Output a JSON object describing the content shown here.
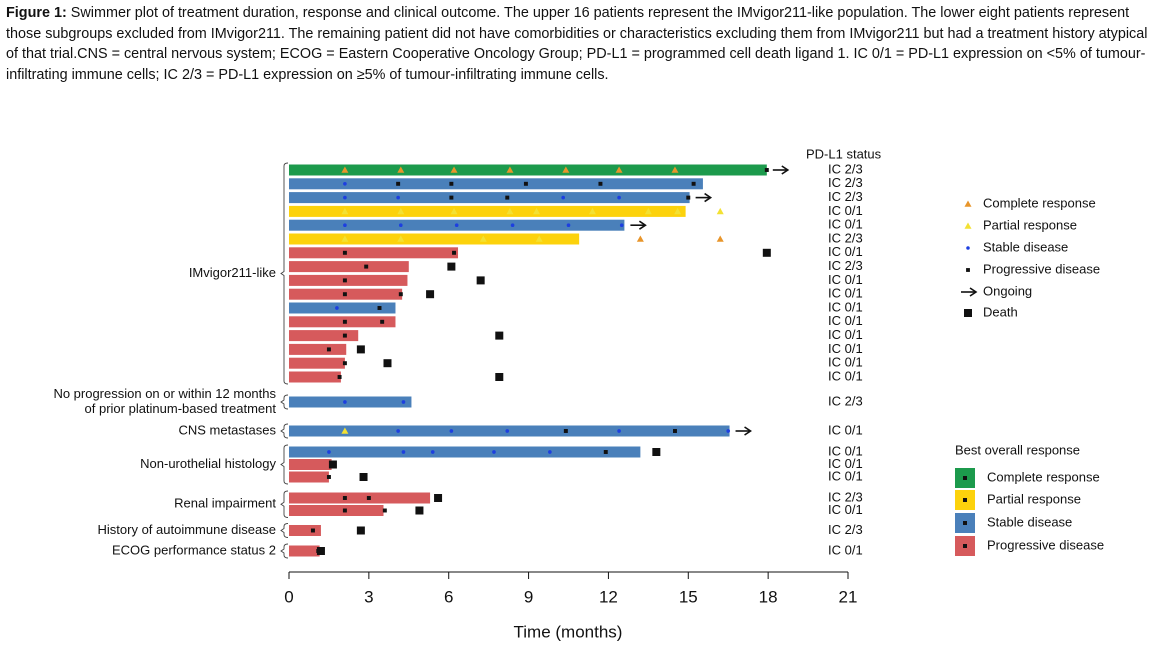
{
  "caption": {
    "label": "Figure 1:",
    "text": "Swimmer plot of treatment duration, response and clinical outcome. The upper 16 patients represent the IMvigor211-like population. The lower eight patients represent those subgroups excluded from IMvigor211. The remaining patient did not have comorbidities or characteristics excluding them from IMvigor211 but had a treatment history atypical of that trial.CNS = central nervous system; ECOG = Eastern Cooperative Oncology Group; PD-L1 = programmed cell death ligand 1. IC 0/1 = PD-L1 expression on <5% of tumour-infiltrating immune cells; IC 2/3 = PD-L1 expression on ≥5% of tumour-infiltrating immune cells."
  },
  "chart_data": {
    "type": "swimmer",
    "xlabel": "Time (months)",
    "xlim": [
      0,
      21
    ],
    "xticks": [
      0,
      3,
      6,
      9,
      12,
      15,
      18,
      21
    ],
    "pdl1_title": "PD-L1 status",
    "event_types": [
      {
        "name": "Complete response",
        "color": "#e8952a",
        "shape": "triangle"
      },
      {
        "name": "Partial response",
        "color": "#f3e133",
        "shape": "triangle"
      },
      {
        "name": "Stable disease",
        "color": "#1d3fe0",
        "shape": "dot"
      },
      {
        "name": "Progressive disease",
        "color": "#111111",
        "shape": "square"
      }
    ],
    "ongoing_label": "Ongoing",
    "death_label": "Death",
    "response_title": "Best overall response",
    "responses": [
      {
        "name": "Complete response",
        "color": "#1c9a4c"
      },
      {
        "name": "Partial response",
        "color": "#fcd20c"
      },
      {
        "name": "Stable disease",
        "color": "#4a80ba"
      },
      {
        "name": "Progressive disease",
        "color": "#d65a5c"
      }
    ],
    "groups": [
      {
        "label": [
          "IMvigor211-like"
        ],
        "first": 0,
        "last": 15
      },
      {
        "label": [
          "No progression on or within 12 months",
          "of prior platinum-based treatment"
        ],
        "first": 16,
        "last": 16
      },
      {
        "label": [
          "CNS metastases"
        ],
        "first": 17,
        "last": 17
      },
      {
        "label": [
          "Non-urothelial histology"
        ],
        "first": 18,
        "last": 20
      },
      {
        "label": [
          "Renal impairment"
        ],
        "first": 21,
        "last": 22
      },
      {
        "label": [
          "History of autoimmune disease"
        ],
        "first": 23,
        "last": 23
      },
      {
        "label": [
          "ECOG performance status 2"
        ],
        "first": 24,
        "last": 24
      }
    ],
    "patients": [
      {
        "duration": 17.95,
        "response": 0,
        "pdl1": "IC 2/3",
        "ongoing": true,
        "death": null,
        "events": [
          {
            "t": 2.1,
            "type": 0
          },
          {
            "t": 4.2,
            "type": 0
          },
          {
            "t": 6.2,
            "type": 0
          },
          {
            "t": 8.3,
            "type": 0
          },
          {
            "t": 10.4,
            "type": 0
          },
          {
            "t": 12.4,
            "type": 0
          },
          {
            "t": 14.5,
            "type": 0
          },
          {
            "t": 17.95,
            "type": 3
          }
        ]
      },
      {
        "duration": 15.55,
        "response": 2,
        "pdl1": "IC 2/3",
        "ongoing": false,
        "death": null,
        "events": [
          {
            "t": 2.1,
            "type": 2
          },
          {
            "t": 4.1,
            "type": 3
          },
          {
            "t": 6.1,
            "type": 3
          },
          {
            "t": 8.9,
            "type": 3
          },
          {
            "t": 11.7,
            "type": 3
          },
          {
            "t": 15.2,
            "type": 3
          }
        ]
      },
      {
        "duration": 15.05,
        "response": 2,
        "pdl1": "IC 2/3",
        "ongoing": true,
        "death": null,
        "events": [
          {
            "t": 2.1,
            "type": 2
          },
          {
            "t": 4.1,
            "type": 2
          },
          {
            "t": 6.1,
            "type": 3
          },
          {
            "t": 8.2,
            "type": 3
          },
          {
            "t": 10.3,
            "type": 2
          },
          {
            "t": 12.4,
            "type": 2
          },
          {
            "t": 15.0,
            "type": 3
          }
        ]
      },
      {
        "duration": 14.9,
        "response": 1,
        "pdl1": "IC 0/1",
        "ongoing": false,
        "death": null,
        "events": [
          {
            "t": 2.1,
            "type": 1
          },
          {
            "t": 4.2,
            "type": 1
          },
          {
            "t": 6.2,
            "type": 1
          },
          {
            "t": 8.3,
            "type": 1
          },
          {
            "t": 9.3,
            "type": 1
          },
          {
            "t": 11.4,
            "type": 1
          },
          {
            "t": 13.5,
            "type": 1
          },
          {
            "t": 14.6,
            "type": 1
          },
          {
            "t": 16.2,
            "type": 1
          }
        ]
      },
      {
        "duration": 12.6,
        "response": 2,
        "pdl1": "IC 0/1",
        "ongoing": true,
        "death": null,
        "events": [
          {
            "t": 2.1,
            "type": 2
          },
          {
            "t": 4.2,
            "type": 2
          },
          {
            "t": 6.3,
            "type": 2
          },
          {
            "t": 8.4,
            "type": 2
          },
          {
            "t": 10.5,
            "type": 2
          },
          {
            "t": 12.5,
            "type": 2
          }
        ]
      },
      {
        "duration": 10.9,
        "response": 1,
        "pdl1": "IC 2/3",
        "ongoing": false,
        "death": null,
        "events": [
          {
            "t": 2.1,
            "type": 1
          },
          {
            "t": 4.2,
            "type": 1
          },
          {
            "t": 7.3,
            "type": 1
          },
          {
            "t": 9.4,
            "type": 1
          },
          {
            "t": 13.2,
            "type": 0
          },
          {
            "t": 16.2,
            "type": 0
          }
        ]
      },
      {
        "duration": 6.35,
        "response": 3,
        "pdl1": "IC 0/1",
        "ongoing": false,
        "death": 17.95,
        "events": [
          {
            "t": 2.1,
            "type": 3
          },
          {
            "t": 6.2,
            "type": 3
          }
        ]
      },
      {
        "duration": 4.5,
        "response": 3,
        "pdl1": "IC 2/3",
        "ongoing": false,
        "death": 6.1,
        "events": [
          {
            "t": 2.9,
            "type": 3
          }
        ]
      },
      {
        "duration": 4.45,
        "response": 3,
        "pdl1": "IC 0/1",
        "ongoing": false,
        "death": 7.2,
        "events": [
          {
            "t": 2.1,
            "type": 3
          }
        ]
      },
      {
        "duration": 4.25,
        "response": 3,
        "pdl1": "IC 0/1",
        "ongoing": false,
        "death": 5.3,
        "events": [
          {
            "t": 2.1,
            "type": 3
          },
          {
            "t": 4.2,
            "type": 3
          }
        ]
      },
      {
        "duration": 4.0,
        "response": 2,
        "pdl1": "IC 0/1",
        "ongoing": false,
        "death": null,
        "events": [
          {
            "t": 1.8,
            "type": 2
          },
          {
            "t": 3.4,
            "type": 3
          }
        ]
      },
      {
        "duration": 4.0,
        "response": 3,
        "pdl1": "IC 0/1",
        "ongoing": false,
        "death": null,
        "events": [
          {
            "t": 2.1,
            "type": 3
          },
          {
            "t": 3.5,
            "type": 3
          }
        ]
      },
      {
        "duration": 2.6,
        "response": 3,
        "pdl1": "IC 0/1",
        "ongoing": false,
        "death": 7.9,
        "events": [
          {
            "t": 2.1,
            "type": 3
          }
        ]
      },
      {
        "duration": 2.15,
        "response": 3,
        "pdl1": "IC 0/1",
        "ongoing": false,
        "death": 2.7,
        "events": [
          {
            "t": 1.5,
            "type": 3
          }
        ]
      },
      {
        "duration": 2.1,
        "response": 3,
        "pdl1": "IC 0/1",
        "ongoing": false,
        "death": 3.7,
        "events": [
          {
            "t": 2.1,
            "type": 3
          }
        ]
      },
      {
        "duration": 1.95,
        "response": 3,
        "pdl1": "IC 0/1",
        "ongoing": false,
        "death": 7.9,
        "events": [
          {
            "t": 1.9,
            "type": 3
          }
        ]
      },
      {
        "duration": 4.6,
        "response": 2,
        "pdl1": "IC 2/3",
        "ongoing": false,
        "death": null,
        "events": [
          {
            "t": 2.1,
            "type": 2
          },
          {
            "t": 4.3,
            "type": 2
          }
        ]
      },
      {
        "duration": 16.55,
        "response": 2,
        "pdl1": "IC 0/1",
        "ongoing": true,
        "death": null,
        "events": [
          {
            "t": 2.1,
            "type": 1
          },
          {
            "t": 4.1,
            "type": 2
          },
          {
            "t": 6.1,
            "type": 2
          },
          {
            "t": 8.2,
            "type": 2
          },
          {
            "t": 10.4,
            "type": 3
          },
          {
            "t": 12.4,
            "type": 2
          },
          {
            "t": 14.5,
            "type": 3
          },
          {
            "t": 16.5,
            "type": 2
          }
        ]
      },
      {
        "duration": 13.2,
        "response": 2,
        "pdl1": "IC 0/1",
        "ongoing": false,
        "death": 13.8,
        "events": [
          {
            "t": 1.5,
            "type": 2
          },
          {
            "t": 4.3,
            "type": 2
          },
          {
            "t": 5.4,
            "type": 2
          },
          {
            "t": 7.7,
            "type": 2
          },
          {
            "t": 9.8,
            "type": 2
          },
          {
            "t": 11.9,
            "type": 3
          }
        ]
      },
      {
        "duration": 1.6,
        "response": 3,
        "pdl1": "IC 0/1",
        "ongoing": false,
        "death": 1.65,
        "events": [
          {
            "t": 1.6,
            "type": 3
          }
        ]
      },
      {
        "duration": 1.5,
        "response": 3,
        "pdl1": "IC 0/1",
        "ongoing": false,
        "death": 2.8,
        "events": [
          {
            "t": 1.5,
            "type": 3
          }
        ]
      },
      {
        "duration": 5.3,
        "response": 3,
        "pdl1": "IC 2/3",
        "ongoing": false,
        "death": 5.6,
        "events": [
          {
            "t": 2.1,
            "type": 3
          },
          {
            "t": 3.0,
            "type": 3
          }
        ]
      },
      {
        "duration": 3.55,
        "response": 3,
        "pdl1": "IC 0/1",
        "ongoing": false,
        "death": 4.9,
        "events": [
          {
            "t": 2.1,
            "type": 3
          },
          {
            "t": 3.6,
            "type": 3
          }
        ]
      },
      {
        "duration": 1.2,
        "response": 3,
        "pdl1": "IC 2/3",
        "ongoing": false,
        "death": 2.7,
        "events": [
          {
            "t": 0.9,
            "type": 3
          }
        ]
      },
      {
        "duration": 1.15,
        "response": 3,
        "pdl1": "IC 0/1",
        "ongoing": false,
        "death": 1.2,
        "events": [
          {
            "t": 1.1,
            "type": 3
          }
        ]
      }
    ]
  }
}
